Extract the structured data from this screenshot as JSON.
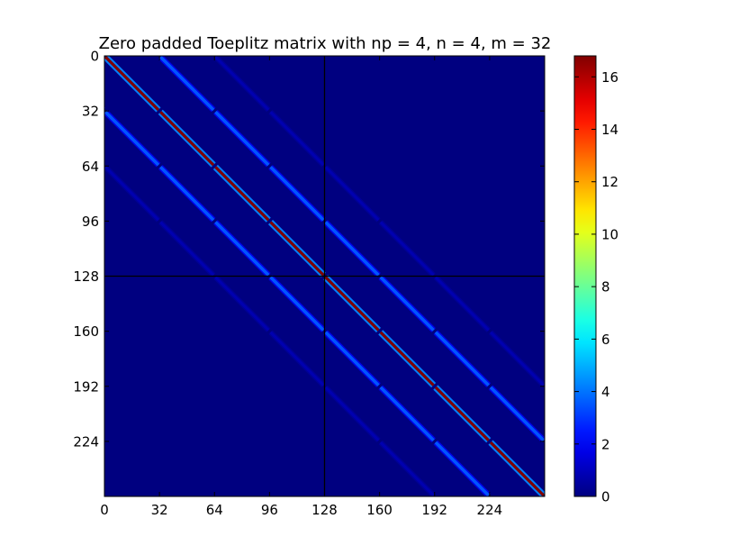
{
  "chart_data": {
    "type": "heatmap",
    "title": "Zero padded Toeplitz matrix with np = 4, n = 4, m = 32",
    "np": 4,
    "n": 4,
    "m": 32,
    "size": 256,
    "block": 32,
    "divider_lines": [
      128
    ],
    "xlim": [
      0,
      256
    ],
    "ylim": [
      256,
      0
    ],
    "xticks": [
      0,
      32,
      64,
      96,
      128,
      160,
      192,
      224
    ],
    "yticks": [
      0,
      32,
      64,
      96,
      128,
      160,
      192,
      224
    ],
    "xtick_labels": [
      "0",
      "32",
      "64",
      "96",
      "128",
      "160",
      "192",
      "224"
    ],
    "ytick_labels": [
      "0",
      "32",
      "64",
      "96",
      "128",
      "160",
      "192",
      "224"
    ],
    "bands": [
      {
        "offset_blocks": 0,
        "value": 16.8
      },
      {
        "offset_blocks": 1,
        "value": 3.5
      },
      {
        "offset_blocks": -1,
        "value": 3.5
      },
      {
        "offset_blocks": 2,
        "value": 0.8
      },
      {
        "offset_blocks": -2,
        "value": 0.8
      }
    ],
    "colorbar": {
      "min": 0,
      "max": 16.8,
      "ticks": [
        0,
        2,
        4,
        6,
        8,
        10,
        12,
        14,
        16
      ],
      "tick_labels": [
        "0",
        "2",
        "4",
        "6",
        "8",
        "10",
        "12",
        "14",
        "16"
      ]
    },
    "colors": {
      "background": "#00007f",
      "divider": "#000000"
    }
  }
}
